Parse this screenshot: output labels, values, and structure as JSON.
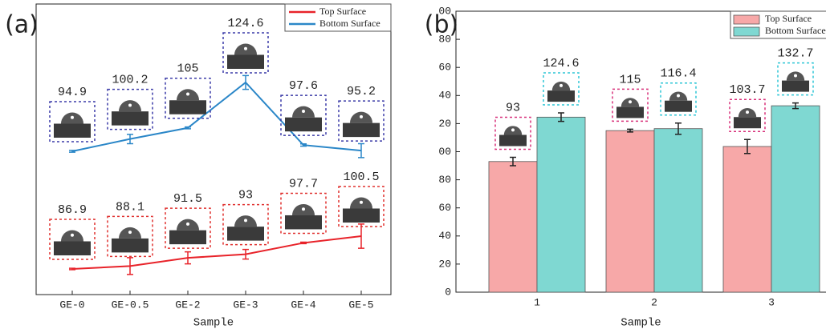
{
  "chart_data": [
    {
      "type": "line",
      "panel_label": "(a)",
      "xlabel": "Sample",
      "categories": [
        "GE-0",
        "GE-0.5",
        "GE-2",
        "GE-3",
        "GE-4",
        "GE-5"
      ],
      "series": [
        {
          "name": "Top Surface",
          "color": "#e8232a",
          "values": [
            86.9,
            88.1,
            91.5,
            93,
            97.7,
            100.5
          ],
          "errors": [
            0.3,
            3.5,
            2.5,
            2,
            0.3,
            5
          ]
        },
        {
          "name": "Bottom Surface",
          "color": "#2b87c8",
          "axis": "y2",
          "values": [
            94.9,
            100.2,
            105,
            124.6,
            97.6,
            95.2
          ],
          "errors": [
            0.4,
            2,
            0.4,
            3,
            0.5,
            3
          ]
        }
      ],
      "legend": "upper right"
    },
    {
      "type": "bar",
      "panel_label": "(b)",
      "xlabel": "Sample",
      "categories": [
        "1",
        "2",
        "3"
      ],
      "series": [
        {
          "name": "Top Surface",
          "color": "#f7a8a8",
          "values": [
            93,
            115,
            103.7
          ],
          "errors": [
            3,
            1,
            5
          ]
        },
        {
          "name": "Bottom Surface",
          "color": "#7fd8d2",
          "values": [
            124.6,
            116.4,
            132.7
          ],
          "errors": [
            3,
            4,
            2
          ]
        }
      ],
      "ylim": [
        0,
        200
      ],
      "yticks": [
        0,
        20,
        40,
        60,
        80,
        {
          "value": 100,
          "label": "00"
        },
        {
          "value": 120,
          "label": "20"
        },
        {
          "value": 140,
          "label": "40"
        },
        {
          "value": 160,
          "label": "60"
        },
        {
          "value": 180,
          "label": "80"
        },
        {
          "value": 200,
          "label": "00"
        }
      ],
      "legend": "upper right"
    }
  ]
}
